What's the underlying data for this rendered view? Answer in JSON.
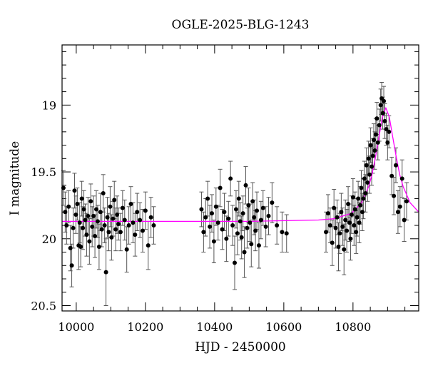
{
  "chart_data": {
    "type": "scatter",
    "title": "OGLE-2025-BLG-1243",
    "xlabel": "HJD - 2450000",
    "ylabel": "I magnitude",
    "xlim": [
      9959,
      10990
    ],
    "ylim": [
      20.54,
      18.55
    ],
    "y_inverted": true,
    "xticks": [
      10000,
      10200,
      10400,
      10600,
      10800
    ],
    "xtick_labels": [
      "10000",
      "10200",
      "10400",
      "10600",
      "10800"
    ],
    "yticks": [
      19,
      19.5,
      20,
      20.5
    ],
    "ytick_labels": [
      "19",
      "19.5",
      "20",
      "20.5"
    ],
    "grid": false,
    "colors": {
      "points": "#000000",
      "errorbars": "#555555",
      "model": "#ff00ff"
    },
    "points": [
      [
        9963,
        19.62,
        0.13
      ],
      [
        9968,
        19.8,
        0.15
      ],
      [
        9972,
        19.9,
        0.14
      ],
      [
        9978,
        19.76,
        0.12
      ],
      [
        9983,
        20.07,
        0.17
      ],
      [
        9987,
        20.2,
        0.16
      ],
      [
        9991,
        19.92,
        0.15
      ],
      [
        9995,
        19.64,
        0.13
      ],
      [
        9999,
        19.82,
        0.14
      ],
      [
        10003,
        19.74,
        0.12
      ],
      [
        10007,
        20.05,
        0.18
      ],
      [
        10010,
        19.88,
        0.15
      ],
      [
        10013,
        20.06,
        0.15
      ],
      [
        10016,
        19.7,
        0.13
      ],
      [
        10019,
        19.92,
        0.16
      ],
      [
        10022,
        19.78,
        0.14
      ],
      [
        10026,
        19.86,
        0.12
      ],
      [
        10030,
        19.97,
        0.16
      ],
      [
        10034,
        19.83,
        0.14
      ],
      [
        10038,
        20.02,
        0.17
      ],
      [
        10042,
        19.72,
        0.13
      ],
      [
        10046,
        19.91,
        0.15
      ],
      [
        10050,
        19.83,
        0.15
      ],
      [
        10054,
        19.98,
        0.16
      ],
      [
        10058,
        19.78,
        0.14
      ],
      [
        10062,
        19.87,
        0.12
      ],
      [
        10066,
        20.06,
        0.17
      ],
      [
        10070,
        19.8,
        0.14
      ],
      [
        10074,
        19.93,
        0.13
      ],
      [
        10078,
        19.66,
        0.14
      ],
      [
        10082,
        19.9,
        0.13
      ],
      [
        10086,
        20.25,
        0.25
      ],
      [
        10090,
        19.84,
        0.15
      ],
      [
        10094,
        19.95,
        0.14
      ],
      [
        10098,
        19.76,
        0.15
      ],
      [
        10102,
        19.99,
        0.17
      ],
      [
        10106,
        19.85,
        0.13
      ],
      [
        10110,
        19.71,
        0.14
      ],
      [
        10114,
        19.93,
        0.16
      ],
      [
        10118,
        19.82,
        0.14
      ],
      [
        10122,
        19.89,
        0.12
      ],
      [
        10128,
        19.95,
        0.14
      ],
      [
        10134,
        19.77,
        0.13
      ],
      [
        10140,
        19.86,
        0.15
      ],
      [
        10146,
        20.08,
        0.17
      ],
      [
        10152,
        19.9,
        0.14
      ],
      [
        10158,
        19.74,
        0.13
      ],
      [
        10164,
        19.88,
        0.15
      ],
      [
        10170,
        19.97,
        0.16
      ],
      [
        10176,
        19.8,
        0.14
      ],
      [
        10184,
        19.86,
        0.13
      ],
      [
        10192,
        19.94,
        0.16
      ],
      [
        10200,
        19.79,
        0.14
      ],
      [
        10208,
        20.05,
        0.18
      ],
      [
        10216,
        19.84,
        0.15
      ],
      [
        10224,
        19.9,
        0.14
      ],
      [
        10362,
        19.78,
        0.13
      ],
      [
        10368,
        19.95,
        0.15
      ],
      [
        10374,
        19.84,
        0.14
      ],
      [
        10380,
        19.7,
        0.13
      ],
      [
        10386,
        19.91,
        0.16
      ],
      [
        10392,
        19.81,
        0.14
      ],
      [
        10398,
        20.02,
        0.16
      ],
      [
        10404,
        19.76,
        0.14
      ],
      [
        10410,
        19.88,
        0.13
      ],
      [
        10416,
        19.62,
        0.14
      ],
      [
        10422,
        19.93,
        0.15
      ],
      [
        10428,
        19.8,
        0.14
      ],
      [
        10434,
        20.0,
        0.17
      ],
      [
        10440,
        19.85,
        0.13
      ],
      [
        10446,
        19.55,
        0.13
      ],
      [
        10452,
        19.9,
        0.15
      ],
      [
        10458,
        20.18,
        0.2
      ],
      [
        10462,
        19.78,
        0.14
      ],
      [
        10466,
        19.96,
        0.16
      ],
      [
        10470,
        19.7,
        0.13
      ],
      [
        10474,
        19.87,
        0.14
      ],
      [
        10478,
        19.99,
        0.16
      ],
      [
        10482,
        19.81,
        0.13
      ],
      [
        10486,
        20.1,
        0.19
      ],
      [
        10490,
        19.6,
        0.14
      ],
      [
        10494,
        19.92,
        0.15
      ],
      [
        10498,
        19.75,
        0.13
      ],
      [
        10502,
        19.88,
        0.14
      ],
      [
        10506,
        20.04,
        0.17
      ],
      [
        10510,
        19.72,
        0.14
      ],
      [
        10514,
        19.84,
        0.13
      ],
      [
        10518,
        19.94,
        0.15
      ],
      [
        10522,
        19.79,
        0.14
      ],
      [
        10528,
        20.05,
        0.17
      ],
      [
        10534,
        19.86,
        0.14
      ],
      [
        10540,
        19.77,
        0.13
      ],
      [
        10548,
        19.91,
        0.15
      ],
      [
        10556,
        19.83,
        0.14
      ],
      [
        10566,
        19.73,
        0.15
      ],
      [
        10580,
        19.9,
        0.14
      ],
      [
        10595,
        19.95,
        0.15
      ],
      [
        10608,
        19.96,
        0.14
      ],
      [
        10722,
        19.95,
        0.15
      ],
      [
        10728,
        19.81,
        0.14
      ],
      [
        10734,
        19.9,
        0.13
      ],
      [
        10740,
        20.03,
        0.17
      ],
      [
        10745,
        19.77,
        0.14
      ],
      [
        10750,
        19.92,
        0.15
      ],
      [
        10754,
        19.84,
        0.13
      ],
      [
        10758,
        20.06,
        0.18
      ],
      [
        10762,
        19.96,
        0.15
      ],
      [
        10766,
        19.8,
        0.14
      ],
      [
        10770,
        19.91,
        0.14
      ],
      [
        10774,
        20.08,
        0.19
      ],
      [
        10778,
        19.86,
        0.15
      ],
      [
        10782,
        19.94,
        0.16
      ],
      [
        10786,
        19.74,
        0.13
      ],
      [
        10790,
        19.88,
        0.14
      ],
      [
        10793,
        20.0,
        0.16
      ],
      [
        10796,
        19.82,
        0.14
      ],
      [
        10800,
        19.69,
        0.14
      ],
      [
        10803,
        19.9,
        0.15
      ],
      [
        10806,
        19.78,
        0.13
      ],
      [
        10809,
        19.95,
        0.16
      ],
      [
        10812,
        19.84,
        0.14
      ],
      [
        10815,
        19.7,
        0.13
      ],
      [
        10818,
        19.88,
        0.15
      ],
      [
        10821,
        19.75,
        0.14
      ],
      [
        10824,
        19.62,
        0.13
      ],
      [
        10827,
        19.8,
        0.14
      ],
      [
        10830,
        19.7,
        0.15
      ],
      [
        10833,
        19.55,
        0.13
      ],
      [
        10836,
        19.66,
        0.14
      ],
      [
        10839,
        19.45,
        0.13
      ],
      [
        10842,
        19.58,
        0.14
      ],
      [
        10845,
        19.4,
        0.13
      ],
      [
        10848,
        19.52,
        0.14
      ],
      [
        10851,
        19.3,
        0.13
      ],
      [
        10854,
        19.46,
        0.14
      ],
      [
        10857,
        19.38,
        0.13
      ],
      [
        10860,
        19.26,
        0.12
      ],
      [
        10863,
        19.34,
        0.14
      ],
      [
        10866,
        19.22,
        0.12
      ],
      [
        10869,
        19.1,
        0.12
      ],
      [
        10872,
        19.28,
        0.13
      ],
      [
        10876,
        19.15,
        0.12
      ],
      [
        10880,
        19.0,
        0.12
      ],
      [
        10883,
        18.95,
        0.12
      ],
      [
        10886,
        19.06,
        0.12
      ],
      [
        10889,
        18.97,
        0.11
      ],
      [
        10892,
        19.12,
        0.13
      ],
      [
        10896,
        19.18,
        0.12
      ],
      [
        10900,
        19.28,
        0.13
      ],
      [
        10904,
        19.2,
        0.12
      ],
      [
        10912,
        19.53,
        0.14
      ],
      [
        10918,
        19.68,
        0.14
      ],
      [
        10924,
        19.45,
        0.13
      ],
      [
        10930,
        19.8,
        0.16
      ],
      [
        10936,
        19.76,
        0.15
      ],
      [
        10942,
        19.55,
        0.14
      ],
      [
        10948,
        19.86,
        0.16
      ],
      [
        10955,
        19.72,
        0.14
      ]
    ],
    "model": {
      "x": [
        9959,
        10500,
        10700,
        10745,
        10795,
        10825,
        10845,
        10855,
        10865,
        10875,
        10885,
        10895,
        10905,
        10915,
        10925,
        10935,
        10945,
        10965,
        10990
      ],
      "y": [
        19.87,
        19.87,
        19.86,
        19.85,
        19.81,
        19.73,
        19.61,
        19.52,
        19.39,
        19.24,
        19.09,
        19.02,
        19.09,
        19.24,
        19.39,
        19.52,
        19.61,
        19.73,
        19.8
      ]
    }
  }
}
